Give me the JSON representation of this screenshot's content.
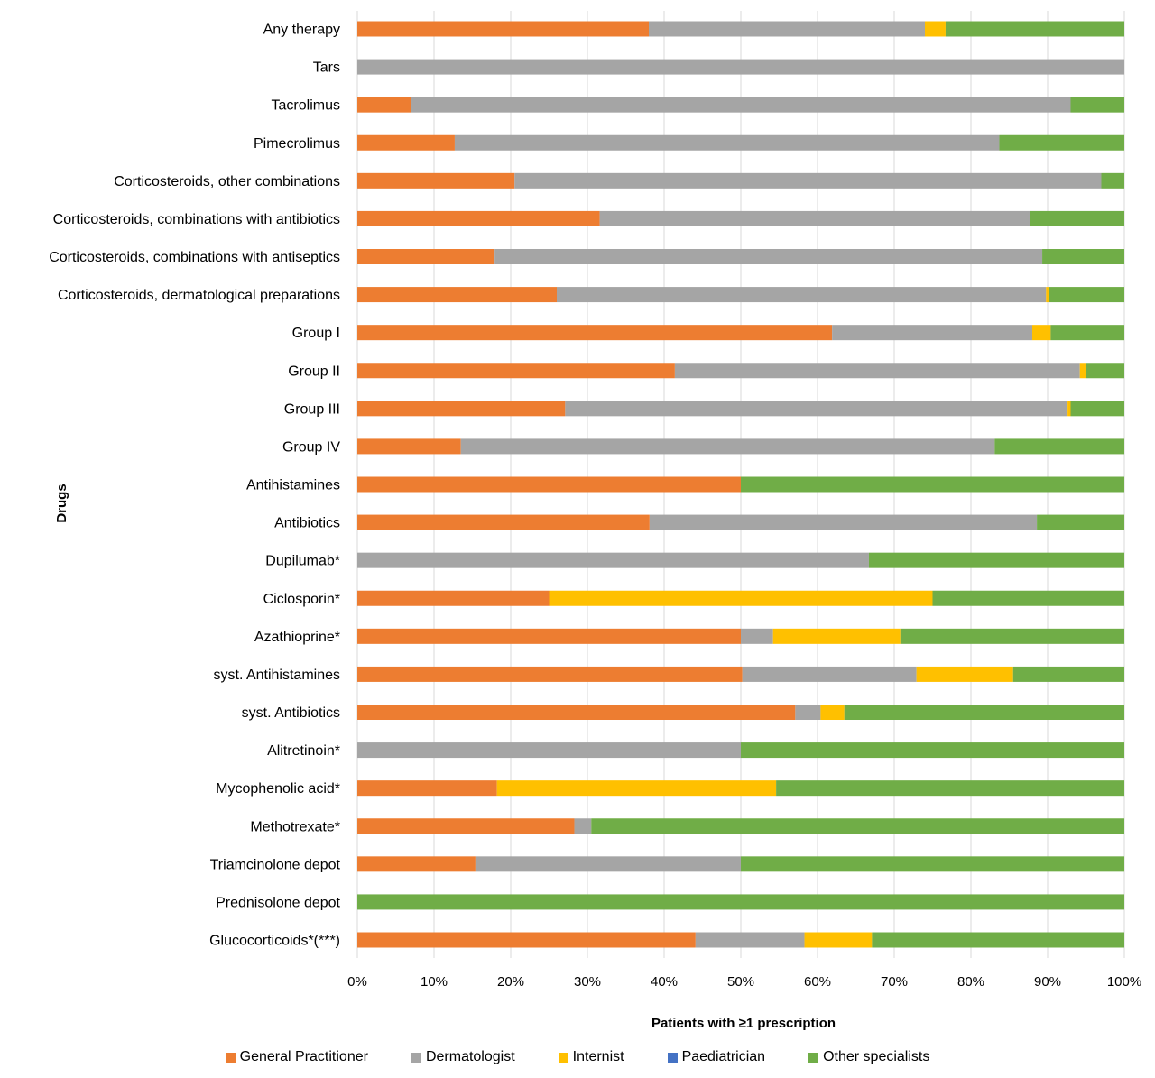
{
  "chart_data": {
    "type": "bar",
    "orientation": "horizontal",
    "stacked": "100%",
    "xlabel": "Patients with ≥1 prescription",
    "ylabel": "Drugs",
    "xlim": [
      0,
      100
    ],
    "x_ticks": [
      "0%",
      "10%",
      "20%",
      "30%",
      "40%",
      "50%",
      "60%",
      "70%",
      "80%",
      "90%",
      "100%"
    ],
    "grid": "vertical",
    "legend_position": "bottom",
    "categories": [
      "Any therapy",
      "Tars",
      "Tacrolimus",
      "Pimecrolimus",
      "Corticosteroids, other combinations",
      "Corticosteroids, combinations with antibiotics",
      "Corticosteroids, combinations with antiseptics",
      "Corticosteroids, dermatological preparations",
      "Group I",
      "Group II",
      "Group III",
      "Group IV",
      "Antihistamines",
      "Antibiotics",
      "Dupilumab*",
      "Ciclosporin*",
      "Azathioprine*",
      "syst. Antihistamines",
      "syst. Antibiotics",
      "Alitretinoin*",
      "Mycophenolic acid*",
      "Methotrexate*",
      "Triamcinolone depot",
      "Prednisolone depot",
      "Glucocorticoids*(***)"
    ],
    "series": [
      {
        "name": "General Practitioner",
        "color": "#ED7D31",
        "values": [
          38,
          0,
          7,
          12.7,
          20.5,
          31.6,
          17.9,
          26,
          61.9,
          41.4,
          27.1,
          13.5,
          50,
          38.1,
          0,
          25,
          50,
          50.2,
          57.1,
          0,
          18.2,
          28.3,
          15.4,
          0,
          44.1
        ]
      },
      {
        "name": "Dermatologist",
        "color": "#A5A5A5",
        "values": [
          36,
          100,
          86,
          71,
          76.5,
          56.1,
          71.4,
          63.8,
          26.1,
          52.8,
          65.5,
          69.6,
          0,
          50.5,
          66.7,
          0,
          4.2,
          22.7,
          3.3,
          50,
          0,
          2.2,
          34.6,
          0,
          14.2
        ]
      },
      {
        "name": "Internist",
        "color": "#FFC000",
        "values": [
          2.7,
          0,
          0,
          0,
          0,
          0,
          0,
          0.4,
          2.4,
          0.8,
          0.4,
          0,
          0,
          0,
          0,
          50,
          16.6,
          12.6,
          3.1,
          0,
          36.4,
          0,
          0,
          0,
          8.8
        ]
      },
      {
        "name": "Paediatrician",
        "color": "#4472C4",
        "values": [
          0,
          0,
          0,
          0,
          0,
          0,
          0,
          0,
          0,
          0,
          0,
          0,
          0,
          0,
          0,
          0,
          0,
          0,
          0,
          0,
          0,
          0,
          0,
          0,
          0
        ]
      },
      {
        "name": "Other specialists",
        "color": "#70AD47",
        "values": [
          23.3,
          0,
          7,
          16.3,
          3,
          12.3,
          10.7,
          9.8,
          9.6,
          5,
          7,
          16.9,
          50,
          11.4,
          33.3,
          25,
          29.2,
          14.5,
          36.5,
          50,
          45.4,
          69.5,
          50,
          100,
          32.9
        ]
      }
    ]
  }
}
